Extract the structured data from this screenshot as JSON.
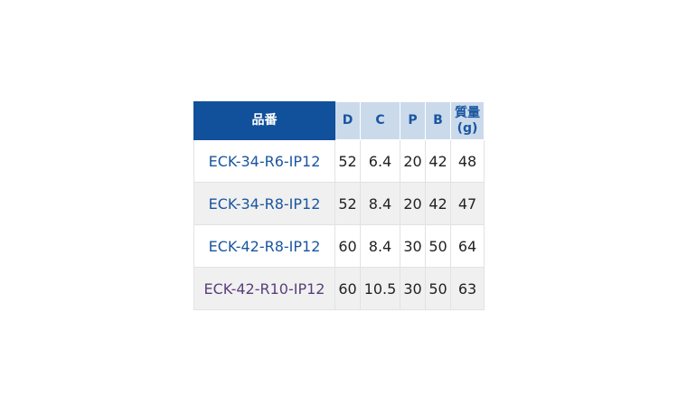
{
  "table": {
    "headers": [
      "品番",
      "D",
      "C",
      "P",
      "B",
      "質量",
      "(g)"
    ],
    "rows": [
      {
        "part": "ECK-34-R6-IP12",
        "D": "52",
        "C": "6.4",
        "P": "20",
        "B": "42",
        "mass": "48"
      },
      {
        "part": "ECK-34-R8-IP12",
        "D": "52",
        "C": "8.4",
        "P": "20",
        "B": "42",
        "mass": "47"
      },
      {
        "part": "ECK-42-R8-IP12",
        "D": "60",
        "C": "8.4",
        "P": "30",
        "B": "50",
        "mass": "64"
      },
      {
        "part": "ECK-42-R10-IP12",
        "D": "60",
        "C": "10.5",
        "P": "30",
        "B": "50",
        "mass": "63"
      }
    ]
  },
  "colors": {
    "header": "#11509a",
    "subheader": "#cbdaeb",
    "link": "#1a56a0"
  }
}
